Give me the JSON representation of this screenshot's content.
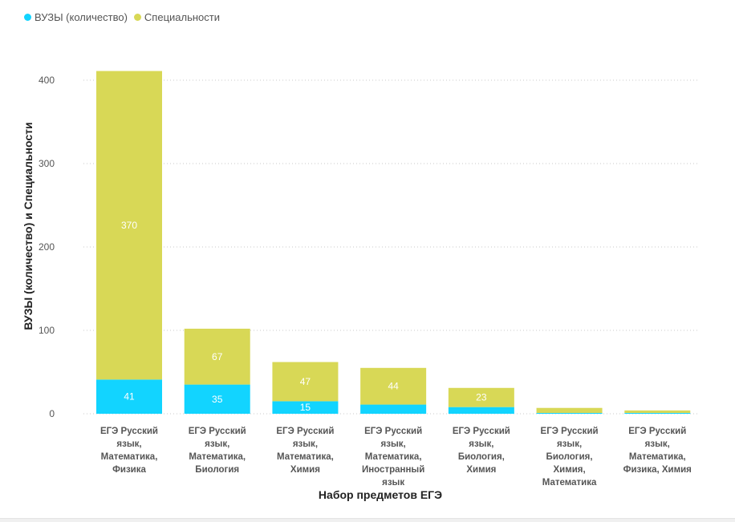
{
  "chart_data": {
    "type": "bar",
    "stacked": true,
    "categories": [
      [
        "ЕГЭ Русский",
        "язык,",
        "Математика,",
        "Физика"
      ],
      [
        "ЕГЭ Русский",
        "язык,",
        "Математика,",
        "Биология"
      ],
      [
        "ЕГЭ Русский",
        "язык,",
        "Математика,",
        "Химия"
      ],
      [
        "ЕГЭ Русский",
        "язык,",
        "Математика,",
        "Иностранный",
        "язык"
      ],
      [
        "ЕГЭ Русский",
        "язык,",
        "Биология,",
        "Химия"
      ],
      [
        "ЕГЭ Русский",
        "язык,",
        "Биология,",
        "Химия,",
        "Математика"
      ],
      [
        "ЕГЭ Русский",
        "язык,",
        "Математика,",
        "Физика, Химия"
      ]
    ],
    "series": [
      {
        "name": "ВУЗЫ (количество)",
        "color": "#12d4ff",
        "values": [
          41,
          35,
          15,
          11,
          8,
          1,
          1
        ],
        "labels": [
          "41",
          "35",
          "15",
          "",
          "",
          "",
          ""
        ]
      },
      {
        "name": "Специальности",
        "color": "#d8d856",
        "values": [
          370,
          67,
          47,
          44,
          23,
          6,
          3
        ],
        "labels": [
          "370",
          "67",
          "47",
          "44",
          "23",
          "",
          ""
        ]
      }
    ],
    "xlabel": "Набор предметов ЕГЭ",
    "ylabel": "ВУЗЫ (количество) и Специальности",
    "yticks": [
      0,
      100,
      200,
      300,
      400
    ],
    "ylim": [
      0,
      420
    ],
    "legend_position": "top-left",
    "grid": true
  }
}
